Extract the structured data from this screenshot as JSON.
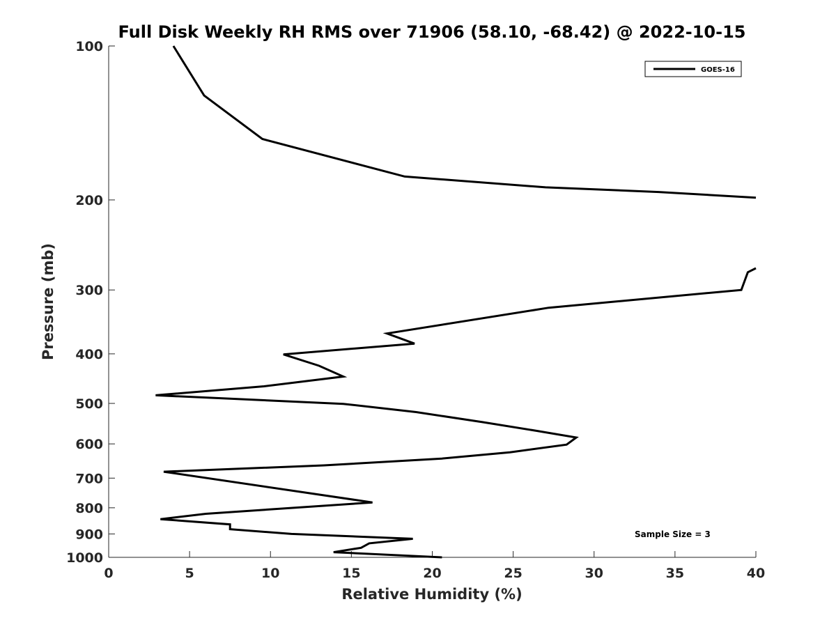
{
  "chart_data": {
    "type": "line",
    "title": "Full Disk Weekly RH RMS over 71906 (58.10, -68.42) @ 2022-10-15",
    "xlabel": "Relative Humidity (%)",
    "ylabel": "Pressure (mb)",
    "xlim": [
      0,
      40
    ],
    "ylim": [
      100,
      1000
    ],
    "yscale": "log",
    "yreversed": true,
    "x_ticks": [
      "0",
      "5",
      "10",
      "15",
      "20",
      "25",
      "30",
      "35",
      "40"
    ],
    "y_ticks": [
      "100",
      "200",
      "300",
      "400",
      "500",
      "600",
      "700",
      "800",
      "900",
      "1000"
    ],
    "grid": false,
    "legend_position": "top-right",
    "annotation": "Sample Size = 3",
    "series": [
      {
        "name": "GOES-16",
        "color": "#000000",
        "segments": [
          [
            {
              "x": 4.0,
              "y": 100
            },
            {
              "x": 5.9,
              "y": 125
            },
            {
              "x": 9.5,
              "y": 152
            },
            {
              "x": 18.3,
              "y": 180
            },
            {
              "x": 27.0,
              "y": 189
            },
            {
              "x": 34.0,
              "y": 193
            },
            {
              "x": 40.0,
              "y": 198
            }
          ],
          [
            {
              "x": 40.0,
              "y": 272
            },
            {
              "x": 39.5,
              "y": 277
            },
            {
              "x": 39.1,
              "y": 300
            },
            {
              "x": 27.2,
              "y": 325
            },
            {
              "x": 17.2,
              "y": 365
            },
            {
              "x": 18.9,
              "y": 382
            },
            {
              "x": 10.8,
              "y": 401
            },
            {
              "x": 13.0,
              "y": 422
            },
            {
              "x": 14.5,
              "y": 443
            },
            {
              "x": 9.6,
              "y": 463
            },
            {
              "x": 2.9,
              "y": 482
            },
            {
              "x": 14.5,
              "y": 501
            },
            {
              "x": 19.0,
              "y": 520
            },
            {
              "x": 23.1,
              "y": 544
            },
            {
              "x": 26.5,
              "y": 566
            },
            {
              "x": 28.9,
              "y": 583
            },
            {
              "x": 28.3,
              "y": 602
            },
            {
              "x": 24.8,
              "y": 623
            },
            {
              "x": 20.6,
              "y": 641
            },
            {
              "x": 13.3,
              "y": 661
            },
            {
              "x": 3.4,
              "y": 680
            },
            {
              "x": 16.3,
              "y": 781
            },
            {
              "x": 6.0,
              "y": 822
            },
            {
              "x": 3.2,
              "y": 842
            },
            {
              "x": 7.5,
              "y": 862
            },
            {
              "x": 7.5,
              "y": 881
            },
            {
              "x": 11.3,
              "y": 900
            },
            {
              "x": 18.8,
              "y": 920
            },
            {
              "x": 16.1,
              "y": 939
            },
            {
              "x": 15.6,
              "y": 958
            },
            {
              "x": 13.9,
              "y": 977
            },
            {
              "x": 20.6,
              "y": 1000
            }
          ]
        ]
      }
    ]
  }
}
